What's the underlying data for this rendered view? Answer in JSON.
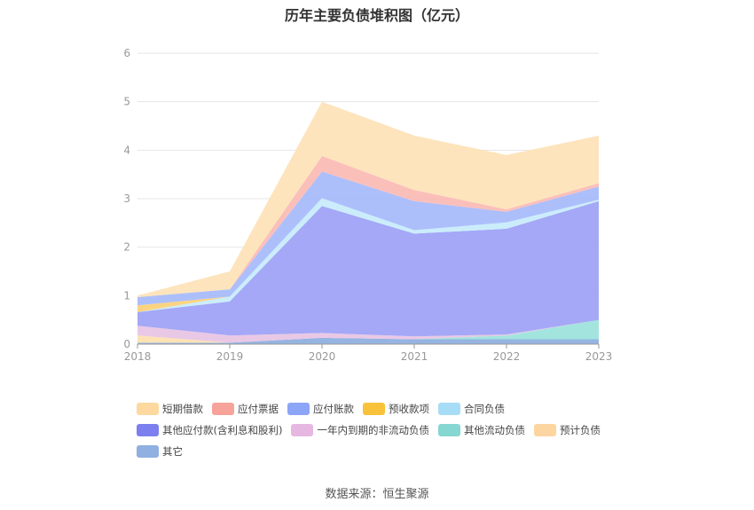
{
  "title": "历年主要负债堆积图（亿元）",
  "source": "数据来源：恒生聚源",
  "chart_data": {
    "type": "area",
    "stacked": true,
    "categories": [
      "2018",
      "2019",
      "2020",
      "2021",
      "2022",
      "2023"
    ],
    "ylim": [
      0,
      6
    ],
    "yticks": [
      "0",
      "1",
      "2",
      "3",
      "4",
      "5",
      "6"
    ],
    "grid": true,
    "legend_position": "bottom",
    "series": [
      {
        "name": "其它",
        "color": "#8fb0e0",
        "values": [
          0.03,
          0.03,
          0.13,
          0.1,
          0.1,
          0.1
        ]
      },
      {
        "name": "预计负债",
        "color": "#fde0b0",
        "values": [
          0.15,
          0.0,
          0.0,
          0.0,
          0.0,
          0.0
        ]
      },
      {
        "name": "其他流动负债",
        "color": "#9fe3dd",
        "values": [
          0.0,
          0.0,
          0.0,
          0.0,
          0.08,
          0.4
        ]
      },
      {
        "name": "一年内到期的非流动负债",
        "color": "#e8c5e5",
        "values": [
          0.2,
          0.15,
          0.1,
          0.06,
          0.02,
          0.0
        ]
      },
      {
        "name": "其他应付款(含利息和股利)",
        "color": "#9fa3f6",
        "values": [
          0.28,
          0.7,
          2.62,
          2.12,
          2.18,
          2.45
        ]
      },
      {
        "name": "合同负债",
        "color": "#c8ecfb",
        "values": [
          0.0,
          0.1,
          0.16,
          0.07,
          0.13,
          0.03
        ]
      },
      {
        "name": "预收款项",
        "color": "#fbd27a",
        "values": [
          0.14,
          0.0,
          0.0,
          0.0,
          0.0,
          0.0
        ]
      },
      {
        "name": "应付账款",
        "color": "#a9bcfb",
        "values": [
          0.17,
          0.15,
          0.55,
          0.6,
          0.22,
          0.27
        ]
      },
      {
        "name": "应付票据",
        "color": "#fbbcb6",
        "values": [
          0.0,
          0.0,
          0.32,
          0.23,
          0.05,
          0.07
        ]
      },
      {
        "name": "短期借款",
        "color": "#fde3b8",
        "values": [
          0.03,
          0.37,
          1.12,
          1.12,
          1.12,
          0.98
        ]
      }
    ],
    "legend": [
      {
        "name": "短期借款",
        "color": "#fdd9a0"
      },
      {
        "name": "应付票据",
        "color": "#f7a39a"
      },
      {
        "name": "应付账款",
        "color": "#8ca5f6"
      },
      {
        "name": "预收款项",
        "color": "#f8c33a"
      },
      {
        "name": "合同负债",
        "color": "#a6dcf5"
      },
      {
        "name": "其他应付款(含利息和股利)",
        "color": "#7b80ee"
      },
      {
        "name": "一年内到期的非流动负债",
        "color": "#e6b7e0"
      },
      {
        "name": "其他流动负债",
        "color": "#86d6d2"
      },
      {
        "name": "预计负债",
        "color": "#fdd5a0"
      },
      {
        "name": "其它",
        "color": "#8fb0e0"
      }
    ]
  }
}
